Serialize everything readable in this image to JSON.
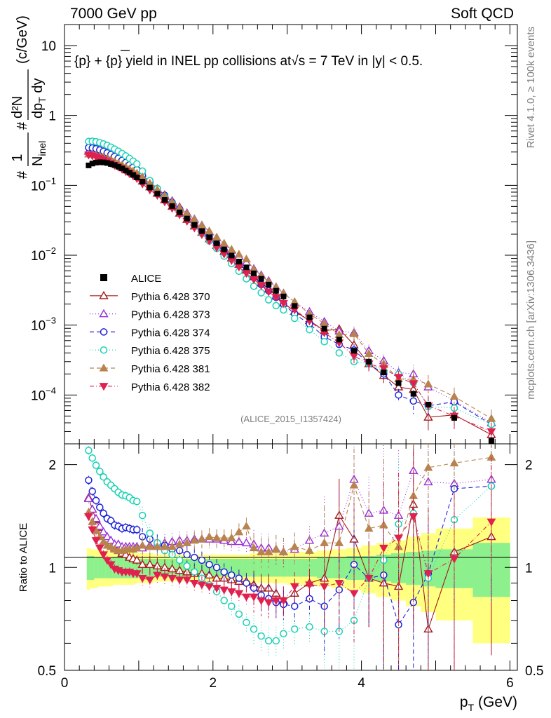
{
  "header": {
    "energy": "7000 GeV pp",
    "category": "Soft QCD",
    "plot_title": "{p} + {p} yield in INEL pp collisions at√s =  7 TeV in |y| < 0.5.",
    "analysis_id": "(ALICE_2015_I1357424)",
    "rivet_label": "Rivet 4.1.0, ≥ 100k events",
    "source_label": "mcplots.cern.ch [arXiv:1306.3436]"
  },
  "chart_data": [
    {
      "type": "scatter",
      "title": "{p} + {p} yield in INEL pp collisions at √s = 7 TeV in |y| < 0.5",
      "ylabel": "1/Ninel d2N/dpT dy (c/GeV)",
      "ylabel_parts": {
        "hash": "#",
        "one": "1",
        "hash2": "#",
        "numer": "d²N",
        "nmain": "N",
        "nsub": "inel",
        "denom": "dp",
        "dsub": "T",
        "dy": " dy",
        "unit": "(c/GeV)"
      },
      "xlabel": "pT (GeV)",
      "yscale": "log",
      "xlim": [
        0,
        6.1
      ],
      "ylim": [
        2e-05,
        20
      ],
      "yticks": [
        "10",
        "1",
        "10−1",
        "10−2",
        "10−3",
        "10−4"
      ],
      "x": [
        0.325,
        0.375,
        0.425,
        0.475,
        0.525,
        0.575,
        0.625,
        0.675,
        0.725,
        0.775,
        0.825,
        0.875,
        0.925,
        0.975,
        1.05,
        1.15,
        1.25,
        1.35,
        1.45,
        1.55,
        1.65,
        1.75,
        1.85,
        1.95,
        2.05,
        2.15,
        2.25,
        2.35,
        2.45,
        2.55,
        2.65,
        2.75,
        2.85,
        2.95,
        3.1,
        3.3,
        3.5,
        3.7,
        3.9,
        4.1,
        4.3,
        4.5,
        4.7,
        4.9,
        5.25,
        5.75
      ],
      "series": [
        {
          "name": "ALICE",
          "values": [
            0.193,
            0.205,
            0.212,
            0.214,
            0.213,
            0.209,
            0.202,
            0.195,
            0.185,
            0.175,
            0.163,
            0.152,
            0.141,
            0.13,
            0.113,
            0.093,
            0.076,
            0.062,
            0.0505,
            0.041,
            0.0335,
            0.0272,
            0.0222,
            0.0181,
            0.0148,
            0.0121,
            0.0099,
            0.0081,
            0.0067,
            0.0055,
            0.0046,
            0.0038,
            0.0031,
            0.00257,
            0.00188,
            0.00129,
            0.00089,
            0.00062,
            0.00043,
            0.0003,
            0.00021,
            0.000148,
            0.000104,
            7.3e-05,
            4.7e-05,
            2.2e-05
          ]
        },
        {
          "name": "Pythia 6.428 370",
          "values": [
            0.309,
            0.304,
            0.293,
            0.28,
            0.266,
            0.252,
            0.237,
            0.222,
            0.207,
            0.193,
            0.178,
            0.163,
            0.15,
            0.137,
            0.115,
            0.095,
            0.077,
            0.062,
            0.05,
            0.04,
            0.0325,
            0.0261,
            0.0212,
            0.0172,
            0.0138,
            0.0113,
            0.0091,
            0.0074,
            0.0061,
            0.0049,
            0.004,
            0.0033,
            0.0026,
            0.00205,
            0.00158,
            0.00116,
            0.00083,
            0.00088,
            0.00052,
            0.00028,
            0.00019,
            0.00013,
            0.00012,
            4.8e-05,
            5.2e-05,
            2.7e-05
          ]
        },
        {
          "name": "Pythia 6.428 373",
          "values": [
            0.307,
            0.303,
            0.294,
            0.282,
            0.27,
            0.257,
            0.243,
            0.229,
            0.216,
            0.202,
            0.188,
            0.175,
            0.162,
            0.149,
            0.129,
            0.108,
            0.089,
            0.073,
            0.06,
            0.049,
            0.0402,
            0.0328,
            0.0268,
            0.0218,
            0.0178,
            0.0145,
            0.0118,
            0.0096,
            0.0079,
            0.0064,
            0.0052,
            0.0043,
            0.0035,
            0.00285,
            0.00212,
            0.00155,
            0.00112,
            0.00082,
            0.00078,
            0.00043,
            0.00031,
            0.00021,
            0.0002,
            0.00013,
            8.3e-05,
            4e-05
          ]
        },
        {
          "name": "Pythia 6.428 374",
          "values": [
            0.347,
            0.343,
            0.334,
            0.321,
            0.307,
            0.292,
            0.276,
            0.26,
            0.244,
            0.228,
            0.213,
            0.197,
            0.182,
            0.168,
            0.139,
            0.112,
            0.09,
            0.072,
            0.057,
            0.046,
            0.0365,
            0.029,
            0.0233,
            0.0185,
            0.0148,
            0.0118,
            0.0094,
            0.0075,
            0.006,
            0.0048,
            0.0038,
            0.0031,
            0.0025,
            0.002,
            0.00144,
            0.00104,
            0.00068,
            0.00053,
            0.00044,
            0.00028,
            0.0002,
            0.0001,
            8.2e-05,
            7e-05,
            8e-05,
            3.8e-05
          ]
        },
        {
          "name": "Pythia 6.428 375",
          "values": [
            0.425,
            0.428,
            0.421,
            0.408,
            0.392,
            0.373,
            0.352,
            0.33,
            0.308,
            0.286,
            0.264,
            0.243,
            0.222,
            0.203,
            0.16,
            0.117,
            0.09,
            0.069,
            0.055,
            0.043,
            0.0337,
            0.0263,
            0.0205,
            0.016,
            0.0125,
            0.0097,
            0.0076,
            0.0059,
            0.0046,
            0.0036,
            0.0029,
            0.0023,
            0.0019,
            0.00165,
            0.00125,
            0.00086,
            0.00058,
            0.0004,
            0.0003,
            0.00028,
            0.00022,
            0.000198,
            0.00015,
            6.8e-05,
            6.5e-05,
            3.8e-05
          ]
        },
        {
          "name": "Pythia 6.428 381",
          "values": [
            0.279,
            0.278,
            0.272,
            0.264,
            0.254,
            0.243,
            0.232,
            0.22,
            0.208,
            0.196,
            0.184,
            0.172,
            0.16,
            0.149,
            0.131,
            0.107,
            0.087,
            0.071,
            0.058,
            0.048,
            0.0395,
            0.0326,
            0.0268,
            0.0222,
            0.0181,
            0.0148,
            0.0121,
            0.0103,
            0.0088,
            0.0063,
            0.0051,
            0.0042,
            0.0035,
            0.00285,
            0.00216,
            0.00145,
            0.00105,
            0.00073,
            0.00075,
            0.00039,
            0.00028,
            0.00017,
            0.000168,
            0.000143,
            9.5e-05,
            4.6e-05
          ]
        },
        {
          "name": "Pythia 6.428 382",
          "values": [
            0.272,
            0.265,
            0.255,
            0.244,
            0.232,
            0.219,
            0.207,
            0.194,
            0.182,
            0.17,
            0.158,
            0.147,
            0.136,
            0.125,
            0.105,
            0.086,
            0.072,
            0.058,
            0.047,
            0.038,
            0.0307,
            0.0246,
            0.0198,
            0.016,
            0.0128,
            0.0104,
            0.0084,
            0.0068,
            0.0055,
            0.0045,
            0.0037,
            0.003,
            0.0025,
            0.00205,
            0.00166,
            0.00115,
            0.00078,
            0.00056,
            0.00036,
            0.00028,
            0.00024,
            0.00018,
            0.000146,
            7e-05,
            5e-05,
            3e-05
          ]
        }
      ]
    },
    {
      "type": "line",
      "ylabel": "Ratio to ALICE",
      "xlabel": "pT (GeV)",
      "xlabel_parts": {
        "main": "p",
        "sub": "T",
        "unit": " (GeV)"
      },
      "xlim": [
        0,
        6.1
      ],
      "ylim": [
        0.5,
        2.3
      ],
      "xticks": [
        "0",
        "2",
        "4",
        "6"
      ],
      "yticks": [
        "0.5",
        "1",
        "2"
      ],
      "reference": 1,
      "band_edges": [
        0.3,
        0.35,
        0.4,
        0.45,
        0.5,
        0.55,
        0.6,
        0.65,
        0.7,
        0.75,
        0.8,
        0.85,
        0.9,
        0.95,
        1.0,
        1.1,
        1.2,
        1.3,
        1.4,
        1.5,
        1.6,
        1.7,
        1.8,
        1.9,
        2.0,
        2.1,
        2.2,
        2.3,
        2.4,
        2.5,
        2.6,
        2.7,
        2.8,
        2.9,
        3.0,
        3.2,
        3.4,
        3.6,
        3.8,
        4.0,
        4.2,
        4.4,
        4.6,
        4.8,
        5.0,
        5.5,
        6.0
      ],
      "band_stat_half": [
        0.08,
        0.08,
        0.07,
        0.07,
        0.07,
        0.07,
        0.07,
        0.07,
        0.07,
        0.07,
        0.07,
        0.07,
        0.07,
        0.07,
        0.06,
        0.06,
        0.06,
        0.06,
        0.06,
        0.06,
        0.06,
        0.06,
        0.06,
        0.06,
        0.06,
        0.06,
        0.06,
        0.06,
        0.06,
        0.06,
        0.06,
        0.06,
        0.06,
        0.06,
        0.06,
        0.06,
        0.07,
        0.07,
        0.08,
        0.08,
        0.09,
        0.1,
        0.11,
        0.12,
        0.13,
        0.18
      ],
      "band_total_half": [
        0.14,
        0.13,
        0.13,
        0.12,
        0.12,
        0.12,
        0.12,
        0.11,
        0.11,
        0.11,
        0.11,
        0.11,
        0.11,
        0.1,
        0.1,
        0.1,
        0.09,
        0.09,
        0.09,
        0.09,
        0.09,
        0.09,
        0.09,
        0.09,
        0.09,
        0.09,
        0.09,
        0.09,
        0.09,
        0.1,
        0.1,
        0.1,
        0.1,
        0.1,
        0.11,
        0.11,
        0.12,
        0.13,
        0.14,
        0.16,
        0.18,
        0.2,
        0.23,
        0.26,
        0.3,
        0.4
      ],
      "series": [
        {
          "name": "Pythia 6.428 370",
          "values": [
            1.6,
            1.48,
            1.38,
            1.31,
            1.25,
            1.21,
            1.17,
            1.14,
            1.12,
            1.1,
            1.09,
            1.07,
            1.06,
            1.05,
            1.02,
            1.02,
            1.01,
            1.0,
            0.99,
            0.98,
            0.97,
            0.96,
            0.96,
            0.95,
            0.93,
            0.93,
            0.92,
            0.91,
            0.91,
            0.89,
            0.87,
            0.87,
            0.84,
            0.8,
            0.84,
            0.9,
            0.93,
            1.42,
            1.21,
            0.93,
            0.9,
            0.88,
            1.53,
            0.66,
            1.11,
            1.23
          ]
        },
        {
          "name": "Pythia 6.428 373",
          "values": [
            1.59,
            1.48,
            1.39,
            1.32,
            1.27,
            1.23,
            1.2,
            1.17,
            1.17,
            1.15,
            1.15,
            1.15,
            1.15,
            1.15,
            1.14,
            1.16,
            1.17,
            1.18,
            1.19,
            1.2,
            1.2,
            1.21,
            1.21,
            1.21,
            1.21,
            1.2,
            1.19,
            1.19,
            1.18,
            1.17,
            1.14,
            1.14,
            1.13,
            1.11,
            1.13,
            1.2,
            1.26,
            1.32,
            1.81,
            1.44,
            1.47,
            1.42,
            1.92,
            1.78,
            1.76,
            1.81
          ]
        },
        {
          "name": "Pythia 6.428 374",
          "values": [
            1.8,
            1.67,
            1.57,
            1.5,
            1.44,
            1.39,
            1.37,
            1.33,
            1.32,
            1.3,
            1.31,
            1.3,
            1.29,
            1.29,
            1.23,
            1.21,
            1.18,
            1.16,
            1.13,
            1.12,
            1.09,
            1.07,
            1.05,
            1.02,
            1.0,
            0.97,
            0.95,
            0.93,
            0.9,
            0.87,
            0.83,
            0.81,
            0.79,
            0.78,
            0.77,
            0.81,
            0.77,
            0.86,
            1.02,
            0.93,
            0.95,
            0.68,
            0.79,
            0.96,
            1.7,
            1.73
          ]
        },
        {
          "name": "Pythia 6.428 375",
          "values": [
            2.2,
            2.09,
            1.99,
            1.91,
            1.84,
            1.78,
            1.74,
            1.7,
            1.66,
            1.63,
            1.62,
            1.6,
            1.57,
            1.56,
            1.42,
            1.26,
            1.18,
            1.12,
            1.09,
            1.05,
            1.01,
            0.97,
            0.93,
            0.89,
            0.85,
            0.8,
            0.77,
            0.73,
            0.69,
            0.66,
            0.63,
            0.61,
            0.61,
            0.64,
            0.66,
            0.67,
            0.65,
            0.65,
            0.7,
            0.93,
            1.05,
            1.34,
            1.44,
            0.93,
            1.38,
            1.73
          ]
        },
        {
          "name": "Pythia 6.428 381",
          "values": [
            1.45,
            1.36,
            1.28,
            1.23,
            1.19,
            1.16,
            1.15,
            1.13,
            1.12,
            1.12,
            1.13,
            1.13,
            1.13,
            1.14,
            1.16,
            1.15,
            1.15,
            1.15,
            1.15,
            1.17,
            1.18,
            1.2,
            1.21,
            1.23,
            1.22,
            1.22,
            1.22,
            1.27,
            1.32,
            1.14,
            1.11,
            1.11,
            1.13,
            1.11,
            1.15,
            1.12,
            1.18,
            1.18,
            1.74,
            1.3,
            1.33,
            1.15,
            1.62,
            1.96,
            2.02,
            2.1
          ]
        },
        {
          "name": "Pythia 6.428 382",
          "values": [
            1.41,
            1.29,
            1.2,
            1.14,
            1.09,
            1.05,
            1.02,
            0.99,
            0.98,
            0.97,
            0.97,
            0.97,
            0.96,
            0.96,
            0.93,
            0.92,
            0.95,
            0.94,
            0.93,
            0.92,
            0.92,
            0.9,
            0.89,
            0.88,
            0.87,
            0.86,
            0.85,
            0.84,
            0.82,
            0.82,
            0.8,
            0.79,
            0.8,
            0.8,
            0.88,
            0.89,
            0.88,
            0.9,
            0.84,
            0.93,
            1.14,
            1.22,
            1.41,
            0.96,
            1.06,
            1.36
          ]
        }
      ]
    }
  ],
  "legend": [
    {
      "label": "ALICE",
      "color": "#000000",
      "marker": "square-filled",
      "dash": ""
    },
    {
      "label": "Pythia 6.428 370",
      "color": "#a31a1a",
      "marker": "triangle-up-open",
      "dash": ""
    },
    {
      "label": "Pythia 6.428 373",
      "color": "#9a2edb",
      "marker": "triangle-up-open",
      "dash": "1,3"
    },
    {
      "label": "Pythia 6.428 374",
      "color": "#1f22d9",
      "marker": "circle-open",
      "dash": "6,4"
    },
    {
      "label": "Pythia 6.428 375",
      "color": "#19d1b4",
      "marker": "circle-open",
      "dash": "1,3"
    },
    {
      "label": "Pythia 6.428 381",
      "color": "#b8834f",
      "marker": "triangle-up-filled",
      "dash": "6,4"
    },
    {
      "label": "Pythia 6.428 382",
      "color": "#e0204f",
      "marker": "triangle-down-filled",
      "dash": "6,3,1,3"
    }
  ],
  "colors": {
    "band_total": "#ffff80",
    "band_stat": "#8cf08c"
  }
}
